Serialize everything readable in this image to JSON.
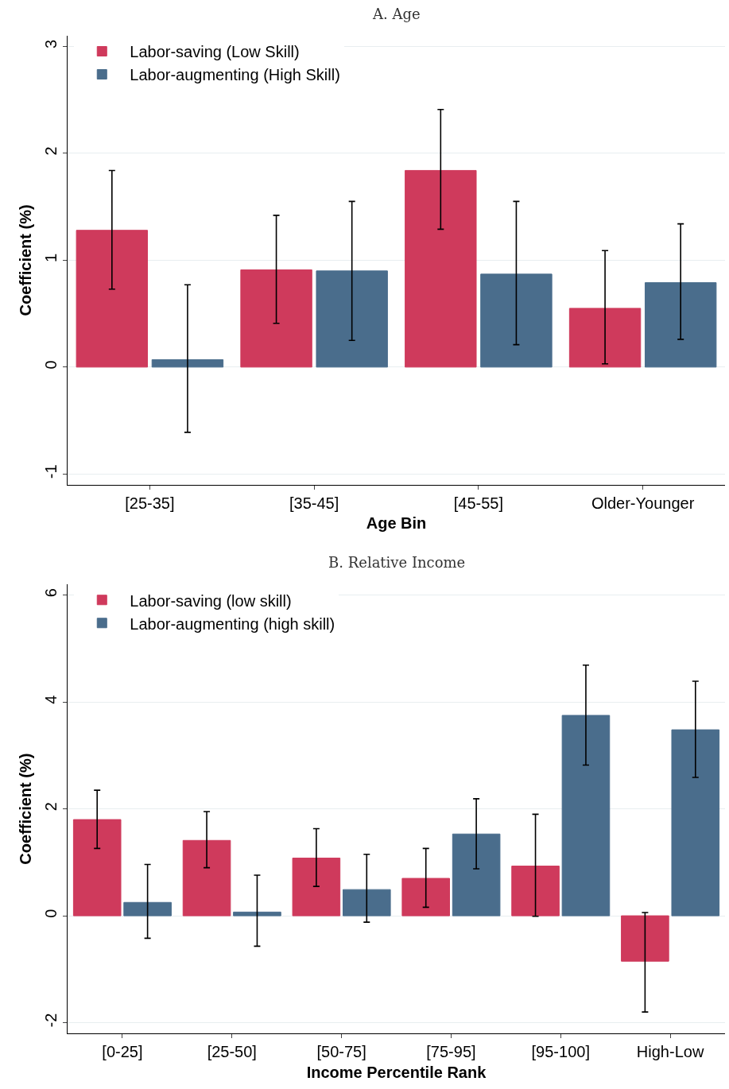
{
  "chart_data": [
    {
      "type": "bar",
      "title": "A. Age",
      "xlabel": "Age Bin",
      "ylabel": "Coefficient (%)",
      "categories": [
        "[25-35]",
        "[35-45]",
        "[45-55]",
        "Older-Younger"
      ],
      "series": [
        {
          "name": "Labor-saving (Low Skill)",
          "color": "#cf3a5c",
          "values": [
            1.28,
            0.91,
            1.84,
            0.55
          ],
          "errors": [
            [
              0.73,
              1.84
            ],
            [
              0.41,
              1.42
            ],
            [
              1.29,
              2.41
            ],
            [
              0.03,
              1.09
            ]
          ]
        },
        {
          "name": "Labor-augmenting (High Skill)",
          "color": "#4a6d8c",
          "values": [
            0.07,
            0.9,
            0.87,
            0.79
          ],
          "errors": [
            [
              -0.61,
              0.77
            ],
            [
              0.25,
              1.55
            ],
            [
              0.21,
              1.55
            ],
            [
              0.26,
              1.34
            ]
          ]
        }
      ],
      "ylim": [
        -1.1,
        3.1
      ],
      "yticks": [
        -1,
        0,
        1,
        2,
        3
      ],
      "grid": "y",
      "legend": "top left"
    },
    {
      "type": "bar",
      "title": "B. Relative Income",
      "xlabel": "Income Percentile Rank",
      "ylabel": "Coefficient (%)",
      "categories": [
        "[0-25]",
        "[25-50]",
        "[50-75]",
        "[75-95]",
        "[95-100]",
        "High-Low"
      ],
      "series": [
        {
          "name": "Labor-saving (low skill)",
          "color": "#cf3a5c",
          "values": [
            1.8,
            1.41,
            1.08,
            0.7,
            0.93,
            -0.85
          ],
          "errors": [
            [
              1.26,
              2.35
            ],
            [
              0.9,
              1.95
            ],
            [
              0.55,
              1.63
            ],
            [
              0.16,
              1.26
            ],
            [
              -0.01,
              1.9
            ],
            [
              -1.8,
              0.06
            ]
          ]
        },
        {
          "name": "Labor-augmenting (high skill)",
          "color": "#4a6d8c",
          "values": [
            0.25,
            0.07,
            0.49,
            1.53,
            3.75,
            3.48
          ],
          "errors": [
            [
              -0.42,
              0.96
            ],
            [
              -0.57,
              0.76
            ],
            [
              -0.12,
              1.15
            ],
            [
              0.88,
              2.19
            ],
            [
              2.82,
              4.69
            ],
            [
              2.59,
              4.39
            ]
          ]
        }
      ],
      "ylim": [
        -2.2,
        6.2
      ],
      "yticks": [
        -2,
        0,
        2,
        4,
        6
      ],
      "grid": "y",
      "legend": "top left"
    }
  ]
}
